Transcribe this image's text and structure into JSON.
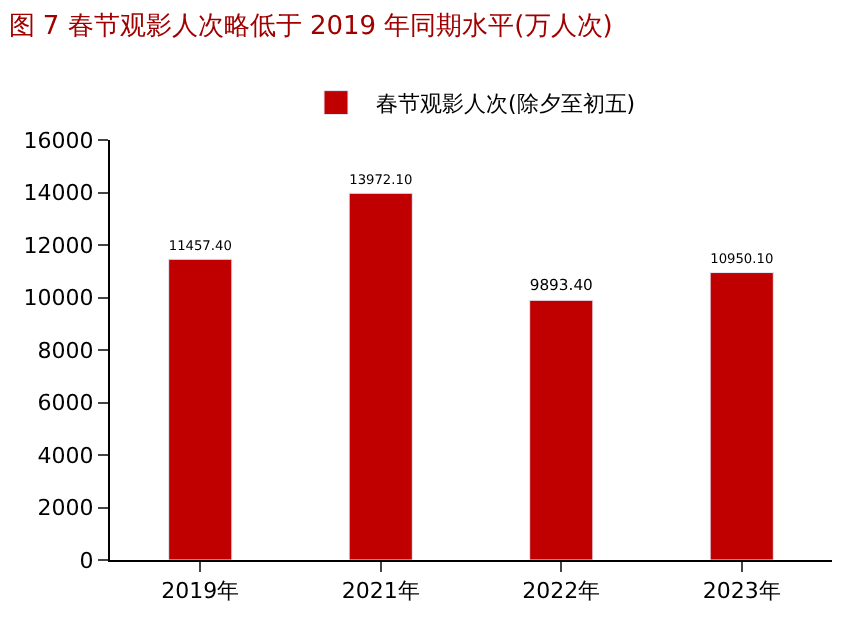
{
  "chart_data": {
    "type": "bar",
    "title": "图 7 春节观影人次略低于 2019 年同期水平(万人次)",
    "categories": [
      "2019年",
      "2021年",
      "2022年",
      "2023年"
    ],
    "series": [
      {
        "name": "春节观影人次(除夕至初五)",
        "color": "#c00000",
        "values": [
          11457.4,
          13972.1,
          9893.4,
          10950.1
        ],
        "value_labels": [
          "11457.40",
          "13972.10",
          "9893.40",
          "10950.10"
        ]
      }
    ],
    "ylim": [
      0,
      16000
    ],
    "yticks": [
      0,
      2000,
      4000,
      6000,
      8000,
      10000,
      12000,
      14000,
      16000
    ],
    "grid": false,
    "legend": "top"
  }
}
